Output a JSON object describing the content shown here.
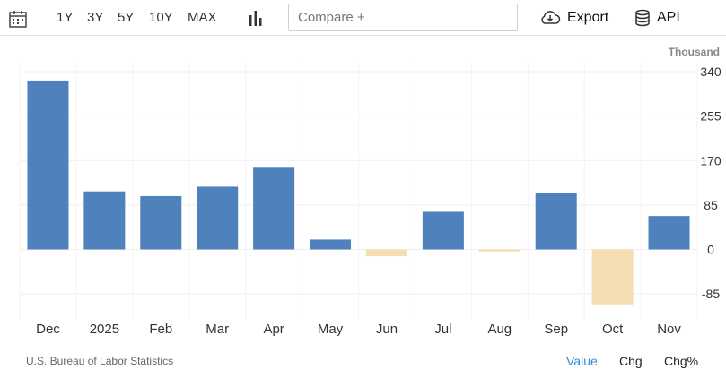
{
  "toolbar": {
    "ranges": [
      "1Y",
      "3Y",
      "5Y",
      "10Y",
      "MAX"
    ],
    "compare_placeholder": "Compare +",
    "export_label": "Export",
    "api_label": "API",
    "icons": [
      "calendar-icon",
      "bar-chart-icon",
      "cloud-download-icon",
      "database-icon"
    ]
  },
  "chart_data": {
    "type": "bar",
    "unit_label": "Thousand",
    "categories": [
      "Dec",
      "2025",
      "Feb",
      "Mar",
      "Apr",
      "May",
      "Jun",
      "Jul",
      "Aug",
      "Sep",
      "Oct",
      "Nov"
    ],
    "values": [
      323,
      111,
      102,
      120,
      158,
      19,
      -13,
      72,
      -4,
      108,
      -105,
      64
    ],
    "yticks": [
      340,
      255,
      170,
      85,
      0,
      -85
    ],
    "ylim": [
      -135,
      340
    ],
    "grid": true,
    "colors": {
      "positive": "#4f81bd",
      "negative": "#f6deb3"
    }
  },
  "footer": {
    "source": "U.S. Bureau of Labor Statistics",
    "tabs": [
      "Value",
      "Chg",
      "Chg%"
    ],
    "active_tab": "Value",
    "active_color": "#2f8bd8"
  }
}
